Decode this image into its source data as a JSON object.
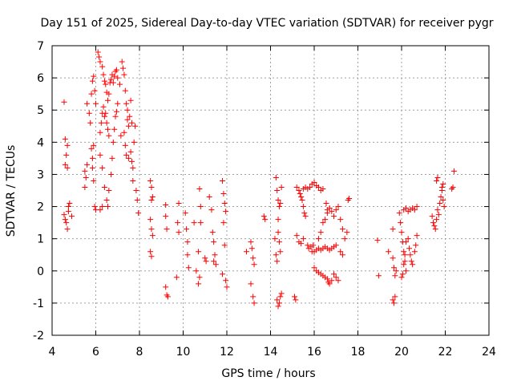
{
  "chart_data": {
    "type": "scatter",
    "title": "Day 151 of 2025, Sidereal Day-to-day VTEC variation (SDTVAR) for receiver pygr",
    "xlabel": "GPS time / hours",
    "ylabel": "SDTVAR / TECUs",
    "xlim": [
      4,
      24
    ],
    "ylim": [
      -2,
      7
    ],
    "xticks": [
      "4",
      "6",
      "8",
      "10",
      "12",
      "14",
      "16",
      "18",
      "20",
      "22",
      "24"
    ],
    "yticks": [
      "-2",
      "-1",
      "0",
      "1",
      "2",
      "3",
      "4",
      "5",
      "6",
      "7"
    ],
    "grid": true,
    "marker": "+",
    "color": "#ff0000",
    "series": [
      {
        "name": "SDTVAR",
        "points": [
          [
            4.55,
            5.25
          ],
          [
            4.55,
            1.75
          ],
          [
            4.6,
            1.6
          ],
          [
            4.65,
            1.5
          ],
          [
            4.7,
            1.3
          ],
          [
            4.75,
            1.85
          ],
          [
            4.6,
            3.3
          ],
          [
            4.65,
            3.6
          ],
          [
            4.7,
            3.9
          ],
          [
            4.6,
            4.1
          ],
          [
            4.7,
            3.2
          ],
          [
            4.75,
            2.0
          ],
          [
            4.8,
            2.1
          ],
          [
            4.9,
            1.7
          ],
          [
            5.5,
            3.1
          ],
          [
            5.5,
            2.6
          ],
          [
            5.55,
            2.9
          ],
          [
            5.6,
            3.3
          ],
          [
            5.6,
            5.2
          ],
          [
            5.7,
            4.9
          ],
          [
            5.75,
            4.6
          ],
          [
            5.8,
            5.5
          ],
          [
            5.85,
            5.9
          ],
          [
            5.9,
            6.05
          ],
          [
            5.95,
            5.6
          ],
          [
            6.0,
            5.2
          ],
          [
            5.85,
            3.5
          ],
          [
            5.8,
            3.8
          ],
          [
            5.9,
            3.9
          ],
          [
            5.95,
            2.0
          ],
          [
            6.0,
            1.9
          ],
          [
            5.9,
            2.8
          ],
          [
            5.85,
            3.2
          ],
          [
            6.1,
            6.8
          ],
          [
            6.15,
            6.65
          ],
          [
            6.2,
            6.5
          ],
          [
            6.3,
            6.35
          ],
          [
            6.35,
            6.1
          ],
          [
            6.4,
            5.9
          ],
          [
            6.45,
            5.8
          ],
          [
            6.5,
            5.55
          ],
          [
            6.55,
            5.3
          ],
          [
            6.6,
            5.5
          ],
          [
            6.65,
            5.85
          ],
          [
            6.7,
            5.95
          ],
          [
            6.75,
            6.1
          ],
          [
            6.8,
            5.85
          ],
          [
            6.85,
            6.05
          ],
          [
            6.9,
            6.2
          ],
          [
            6.95,
            6.25
          ],
          [
            7.0,
            6.0
          ],
          [
            6.2,
            4.3
          ],
          [
            6.25,
            4.6
          ],
          [
            6.3,
            4.9
          ],
          [
            6.35,
            5.1
          ],
          [
            6.4,
            4.8
          ],
          [
            6.45,
            4.9
          ],
          [
            6.5,
            4.6
          ],
          [
            6.55,
            4.4
          ],
          [
            6.6,
            4.2
          ],
          [
            6.2,
            3.6
          ],
          [
            6.3,
            3.2
          ],
          [
            6.4,
            2.6
          ],
          [
            6.5,
            2.2
          ],
          [
            6.55,
            2.0
          ],
          [
            6.2,
            1.9
          ],
          [
            6.3,
            2.0
          ],
          [
            6.6,
            2.5
          ],
          [
            6.7,
            3.0
          ],
          [
            6.75,
            3.5
          ],
          [
            6.8,
            4.0
          ],
          [
            6.85,
            4.4
          ],
          [
            6.9,
            4.8
          ],
          [
            6.95,
            4.95
          ],
          [
            7.0,
            5.2
          ],
          [
            7.1,
            5.8
          ],
          [
            7.15,
            4.2
          ],
          [
            7.2,
            6.5
          ],
          [
            7.25,
            6.3
          ],
          [
            7.3,
            6.1
          ],
          [
            7.35,
            5.6
          ],
          [
            7.4,
            5.2
          ],
          [
            7.45,
            5.0
          ],
          [
            7.5,
            4.5
          ],
          [
            7.3,
            4.3
          ],
          [
            7.35,
            3.9
          ],
          [
            7.4,
            3.6
          ],
          [
            7.45,
            4.7
          ],
          [
            7.5,
            3.5
          ],
          [
            7.55,
            4.8
          ],
          [
            7.6,
            5.3
          ],
          [
            7.65,
            4.6
          ],
          [
            7.7,
            3.2
          ],
          [
            7.75,
            4.0
          ],
          [
            7.6,
            3.7
          ],
          [
            7.65,
            3.4
          ],
          [
            7.7,
            2.8
          ],
          [
            7.8,
            4.5
          ],
          [
            7.85,
            2.5
          ],
          [
            7.9,
            2.2
          ],
          [
            7.95,
            1.8
          ],
          [
            8.5,
            2.8
          ],
          [
            8.55,
            2.6
          ],
          [
            8.55,
            2.2
          ],
          [
            8.6,
            2.3
          ],
          [
            8.5,
            1.6
          ],
          [
            8.55,
            1.3
          ],
          [
            8.6,
            1.1
          ],
          [
            8.5,
            0.6
          ],
          [
            8.55,
            0.45
          ],
          [
            9.2,
            2.05
          ],
          [
            9.2,
            1.7
          ],
          [
            9.25,
            1.3
          ],
          [
            9.2,
            -0.5
          ],
          [
            9.25,
            -0.75
          ],
          [
            9.3,
            -0.8
          ],
          [
            9.8,
            2.1
          ],
          [
            9.75,
            1.5
          ],
          [
            9.8,
            1.2
          ],
          [
            9.7,
            -0.2
          ],
          [
            10.1,
            1.8
          ],
          [
            10.15,
            1.3
          ],
          [
            10.2,
            0.9
          ],
          [
            10.2,
            0.5
          ],
          [
            10.25,
            0.1
          ],
          [
            10.5,
            1.5
          ],
          [
            10.6,
            0.0
          ],
          [
            10.7,
            -0.4
          ],
          [
            10.75,
            -0.2
          ],
          [
            10.7,
            0.6
          ],
          [
            10.75,
            2.55
          ],
          [
            10.8,
            2.0
          ],
          [
            10.8,
            1.5
          ],
          [
            11.0,
            0.4
          ],
          [
            11.05,
            0.3
          ],
          [
            11.2,
            2.3
          ],
          [
            11.3,
            1.9
          ],
          [
            11.35,
            1.2
          ],
          [
            11.4,
            0.9
          ],
          [
            11.45,
            0.5
          ],
          [
            11.4,
            0.3
          ],
          [
            11.5,
            0.2
          ],
          [
            11.8,
            2.8
          ],
          [
            11.85,
            2.4
          ],
          [
            11.9,
            2.1
          ],
          [
            11.95,
            1.85
          ],
          [
            11.85,
            1.5
          ],
          [
            11.9,
            0.8
          ],
          [
            11.95,
            -0.3
          ],
          [
            12.0,
            -0.5
          ],
          [
            11.8,
            -0.1
          ],
          [
            12.9,
            0.6
          ],
          [
            13.1,
            0.9
          ],
          [
            13.15,
            0.7
          ],
          [
            13.2,
            0.4
          ],
          [
            13.25,
            0.2
          ],
          [
            13.1,
            -0.4
          ],
          [
            13.2,
            -0.8
          ],
          [
            13.25,
            -1.0
          ],
          [
            13.7,
            1.7
          ],
          [
            13.75,
            1.6
          ],
          [
            14.2,
            1.0
          ],
          [
            14.25,
            0.5
          ],
          [
            14.3,
            0.3
          ],
          [
            14.35,
            1.2
          ],
          [
            14.4,
            0.9
          ],
          [
            14.45,
            0.6
          ],
          [
            14.25,
            2.9
          ],
          [
            14.3,
            2.5
          ],
          [
            14.35,
            2.2
          ],
          [
            14.4,
            2.0
          ],
          [
            14.45,
            2.1
          ],
          [
            14.5,
            2.6
          ],
          [
            14.35,
            1.6
          ],
          [
            14.3,
            -0.9
          ],
          [
            14.35,
            -1.1
          ],
          [
            14.4,
            -1.0
          ],
          [
            14.45,
            -0.8
          ],
          [
            14.5,
            -0.7
          ],
          [
            15.1,
            -0.8
          ],
          [
            15.15,
            -0.9
          ],
          [
            15.2,
            2.6
          ],
          [
            15.3,
            2.5
          ],
          [
            15.35,
            2.4
          ],
          [
            15.4,
            2.3
          ],
          [
            15.45,
            2.2
          ],
          [
            15.5,
            2.0
          ],
          [
            15.55,
            1.8
          ],
          [
            15.6,
            1.7
          ],
          [
            15.5,
            2.55
          ],
          [
            15.6,
            2.6
          ],
          [
            15.7,
            2.55
          ],
          [
            15.2,
            1.1
          ],
          [
            15.3,
            0.9
          ],
          [
            15.4,
            0.85
          ],
          [
            15.5,
            1.0
          ],
          [
            15.7,
            0.8
          ],
          [
            15.75,
            0.7
          ],
          [
            15.85,
            0.75
          ],
          [
            15.95,
            0.8
          ],
          [
            15.9,
            0.6
          ],
          [
            15.8,
            2.6
          ],
          [
            15.9,
            2.7
          ],
          [
            16.0,
            2.75
          ],
          [
            16.1,
            2.65
          ],
          [
            16.2,
            2.6
          ],
          [
            16.3,
            2.5
          ],
          [
            16.4,
            2.55
          ],
          [
            16.0,
            0.6
          ],
          [
            16.1,
            0.65
          ],
          [
            16.2,
            0.7
          ],
          [
            16.3,
            0.65
          ],
          [
            16.4,
            0.7
          ],
          [
            16.5,
            0.75
          ],
          [
            16.6,
            0.7
          ],
          [
            16.7,
            0.65
          ],
          [
            16.8,
            0.7
          ],
          [
            16.9,
            0.75
          ],
          [
            17.0,
            0.8
          ],
          [
            16.0,
            0.1
          ],
          [
            16.1,
            0.0
          ],
          [
            16.2,
            -0.05
          ],
          [
            16.3,
            -0.1
          ],
          [
            16.4,
            -0.15
          ],
          [
            16.5,
            -0.2
          ],
          [
            16.6,
            -0.25
          ],
          [
            16.65,
            -0.35
          ],
          [
            16.7,
            -0.4
          ],
          [
            16.8,
            -0.3
          ],
          [
            16.9,
            -0.1
          ],
          [
            17.0,
            -0.2
          ],
          [
            17.1,
            -0.3
          ],
          [
            16.2,
            1.0
          ],
          [
            16.3,
            1.2
          ],
          [
            16.4,
            1.5
          ],
          [
            16.5,
            1.6
          ],
          [
            16.55,
            2.1
          ],
          [
            16.6,
            1.8
          ],
          [
            16.6,
            1.9
          ],
          [
            16.7,
            1.95
          ],
          [
            16.8,
            1.85
          ],
          [
            16.9,
            1.7
          ],
          [
            17.0,
            1.9
          ],
          [
            17.1,
            2.0
          ],
          [
            17.2,
            1.6
          ],
          [
            17.3,
            1.3
          ],
          [
            17.4,
            1.0
          ],
          [
            17.5,
            1.2
          ],
          [
            17.2,
            0.6
          ],
          [
            17.3,
            0.5
          ],
          [
            17.55,
            2.2
          ],
          [
            17.6,
            2.25
          ],
          [
            18.9,
            0.95
          ],
          [
            18.95,
            -0.15
          ],
          [
            19.4,
            0.6
          ],
          [
            19.6,
            0.4
          ],
          [
            19.65,
            0.1
          ],
          [
            19.7,
            -0.15
          ],
          [
            19.75,
            0.0
          ],
          [
            19.6,
            -0.9
          ],
          [
            19.65,
            -1.0
          ],
          [
            19.7,
            -0.8
          ],
          [
            19.6,
            1.3
          ],
          [
            19.9,
            1.8
          ],
          [
            19.95,
            1.5
          ],
          [
            20.0,
            1.2
          ],
          [
            20.05,
            0.9
          ],
          [
            20.1,
            0.6
          ],
          [
            20.15,
            0.3
          ],
          [
            20.2,
            0.0
          ],
          [
            20.0,
            -0.2
          ],
          [
            20.05,
            -0.1
          ],
          [
            20.1,
            0.2
          ],
          [
            20.15,
            0.5
          ],
          [
            20.2,
            0.9
          ],
          [
            20.3,
            1.0
          ],
          [
            20.35,
            0.7
          ],
          [
            20.4,
            0.5
          ],
          [
            20.45,
            0.3
          ],
          [
            20.5,
            0.2
          ],
          [
            20.1,
            1.9
          ],
          [
            20.2,
            1.95
          ],
          [
            20.3,
            1.85
          ],
          [
            20.4,
            1.9
          ],
          [
            20.5,
            1.95
          ],
          [
            20.6,
            1.9
          ],
          [
            20.7,
            2.0
          ],
          [
            20.6,
            0.6
          ],
          [
            20.65,
            0.8
          ],
          [
            20.7,
            1.1
          ],
          [
            21.4,
            1.7
          ],
          [
            21.45,
            1.5
          ],
          [
            21.5,
            1.4
          ],
          [
            21.55,
            1.3
          ],
          [
            21.6,
            1.6
          ],
          [
            21.65,
            1.9
          ],
          [
            21.7,
            1.75
          ],
          [
            21.75,
            2.1
          ],
          [
            21.8,
            2.3
          ],
          [
            21.85,
            2.5
          ],
          [
            21.9,
            2.2
          ],
          [
            21.95,
            2.0
          ],
          [
            21.6,
            2.8
          ],
          [
            21.65,
            2.9
          ],
          [
            21.9,
            2.7
          ],
          [
            21.85,
            2.6
          ],
          [
            22.3,
            2.55
          ],
          [
            22.35,
            2.6
          ],
          [
            22.4,
            3.1
          ]
        ]
      }
    ]
  }
}
